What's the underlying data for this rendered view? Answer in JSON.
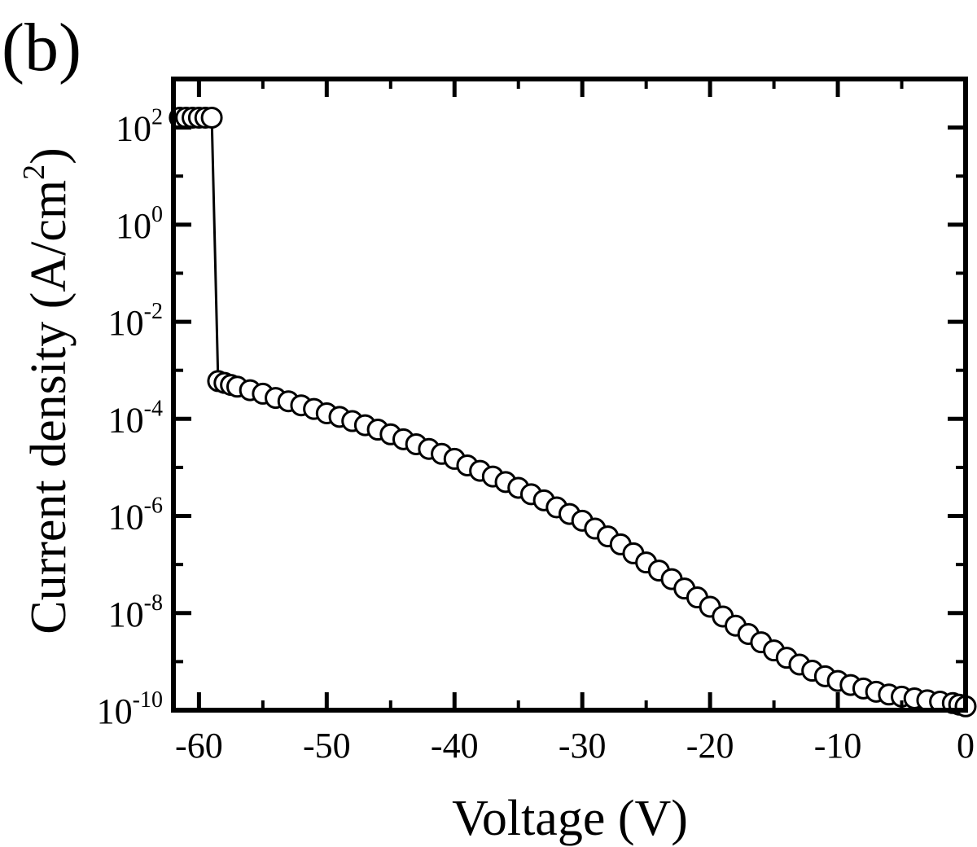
{
  "panel_label": "(b)",
  "chart_data": {
    "type": "scatter",
    "title": "",
    "xlabel": "Voltage (V)",
    "ylabel": "Current density (A/cm²)",
    "ylabel_parts": {
      "base": "Current density (A/cm",
      "sup": "2",
      "tail": ")"
    },
    "xlim": [
      -62,
      0
    ],
    "ylim": [
      1e-10,
      1000
    ],
    "y_scale": "log",
    "grid": false,
    "legend": "none",
    "marker": "open-circle",
    "connected_line": true,
    "x_ticks": [
      -60,
      -50,
      -40,
      -30,
      -20,
      -10,
      0
    ],
    "x_tick_labels": [
      "-60",
      "-50",
      "-40",
      "-30",
      "-20",
      "-10",
      "0"
    ],
    "y_ticks": [
      {
        "value": 100,
        "base": "10",
        "exp": "2"
      },
      {
        "value": 1,
        "base": "10",
        "exp": "0"
      },
      {
        "value": 0.01,
        "base": "10",
        "exp": "-2"
      },
      {
        "value": 0.0001,
        "base": "10",
        "exp": "-4"
      },
      {
        "value": 1e-06,
        "base": "10",
        "exp": "-6"
      },
      {
        "value": 1e-08,
        "base": "10",
        "exp": "-8"
      },
      {
        "value": 1e-10,
        "base": "10",
        "exp": "-10"
      }
    ],
    "series": [
      {
        "x": [
          -61.5,
          -61,
          -60.5,
          -60,
          -59.5,
          -59,
          -58.5,
          -58,
          -57.5,
          -57,
          -56,
          -55,
          -54,
          -53,
          -52,
          -51,
          -50,
          -49,
          -48,
          -47,
          -46,
          -45,
          -44,
          -43,
          -42,
          -41,
          -40,
          -39,
          -38,
          -37,
          -36,
          -35,
          -34,
          -33,
          -32,
          -31,
          -30,
          -29,
          -28,
          -27,
          -26,
          -25,
          -24,
          -23,
          -22,
          -21,
          -20,
          -19,
          -18,
          -17,
          -16,
          -15,
          -14,
          -13,
          -12,
          -11,
          -10,
          -9,
          -8,
          -7,
          -6,
          -5,
          -4,
          -3,
          -2,
          -1,
          -0.5,
          0
        ],
        "y": [
          160,
          160,
          160,
          160,
          160,
          160,
          0.0006,
          0.00055,
          0.0005,
          0.00046,
          0.00039,
          0.00033,
          0.00027,
          0.00023,
          0.00019,
          0.00016,
          0.00013,
          0.00011,
          9e-05,
          7.4e-05,
          6e-05,
          4.8e-05,
          3.8e-05,
          3e-05,
          2.4e-05,
          1.9e-05,
          1.5e-05,
          1.1e-05,
          8.5e-06,
          6.5e-06,
          5e-06,
          3.8e-06,
          2.8e-06,
          2.1e-06,
          1.5e-06,
          1.1e-06,
          8e-07,
          5.5e-07,
          3.8e-07,
          2.6e-07,
          1.7e-07,
          1.1e-07,
          7.5e-08,
          5e-08,
          3.2e-08,
          2.1e-08,
          1.35e-08,
          8.5e-09,
          5.5e-09,
          3.7e-09,
          2.5e-09,
          1.7e-09,
          1.2e-09,
          8.7e-10,
          6.5e-10,
          5e-10,
          4e-10,
          3.3e-10,
          2.8e-10,
          2.4e-10,
          2.1e-10,
          1.9e-10,
          1.75e-10,
          1.6e-10,
          1.5e-10,
          1.4e-10,
          1.3e-10,
          1.2e-10
        ]
      }
    ]
  }
}
